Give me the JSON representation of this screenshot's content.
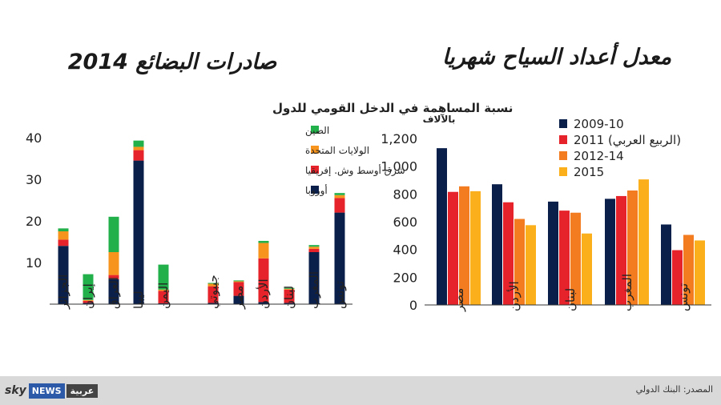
{
  "footer": {
    "source": "المصدر: البنك الدولي",
    "logo_sky": "sky",
    "logo_news": "NEWS",
    "logo_arabic": "عربية"
  },
  "chart_data": [
    {
      "type": "bar",
      "stacked": true,
      "title": "صادرات البضائع 2014",
      "subtitle": "نسبة المساهمة في الدخل القومي للدول",
      "categories": [
        "الجزائر",
        "إيران",
        "العراق",
        "ليبيا",
        "اليمن",
        "جيبوتي",
        "مصر",
        "الأردن",
        "لبنان",
        "المغرب",
        "تونس"
      ],
      "ylim": [
        0,
        40
      ],
      "yticks": [
        10,
        20,
        30,
        40
      ],
      "grid": false,
      "legend_position": "top-right",
      "series": [
        {
          "name": "أوروبا",
          "color": "#0b1f4b",
          "values": [
            14,
            0.3,
            6,
            34.5,
            0.2,
            0.3,
            2,
            0.5,
            0.3,
            12.5,
            22
          ]
        },
        {
          "name": "شرق أوسط وش. إفريقيا",
          "color": "#e6232a",
          "values": [
            1.5,
            0.5,
            1,
            2.5,
            3,
            4,
            3.3,
            10.5,
            3.2,
            0.8,
            3.5
          ]
        },
        {
          "name": "الولايات المتحدة",
          "color": "#f7941d",
          "values": [
            2,
            0.2,
            5.5,
            0.8,
            0.3,
            0.6,
            0.2,
            3.7,
            0.2,
            0.5,
            0.7
          ]
        },
        {
          "name": "الصين",
          "color": "#22b04b",
          "values": [
            0.7,
            6.2,
            8.5,
            1.5,
            6,
            0.2,
            0.2,
            0.5,
            0.2,
            0.4,
            0.5
          ]
        }
      ]
    },
    {
      "type": "bar",
      "title": "معدل أعداد السياح شهريا",
      "ylabel": "بالآلاف",
      "categories": [
        "مصر",
        "الأردن",
        "لبنان",
        "المغرب",
        "تونس"
      ],
      "ylim": [
        0,
        1200
      ],
      "yticks": [
        "0",
        "200",
        "400",
        "600",
        "800",
        "1,000",
        "1,200"
      ],
      "grid": false,
      "legend_position": "top-right",
      "series": [
        {
          "name": "2009-10",
          "color": "#0b1f4b",
          "values": [
            1130,
            870,
            745,
            765,
            580
          ]
        },
        {
          "name": "2011 (الربيع العربي)",
          "color": "#e6232a",
          "values": [
            815,
            740,
            680,
            785,
            395
          ]
        },
        {
          "name": "2012-14",
          "color": "#f47c20",
          "values": [
            855,
            620,
            665,
            825,
            505
          ]
        },
        {
          "name": "2015",
          "color": "#fbb01b",
          "values": [
            820,
            575,
            515,
            905,
            465
          ]
        }
      ]
    }
  ]
}
